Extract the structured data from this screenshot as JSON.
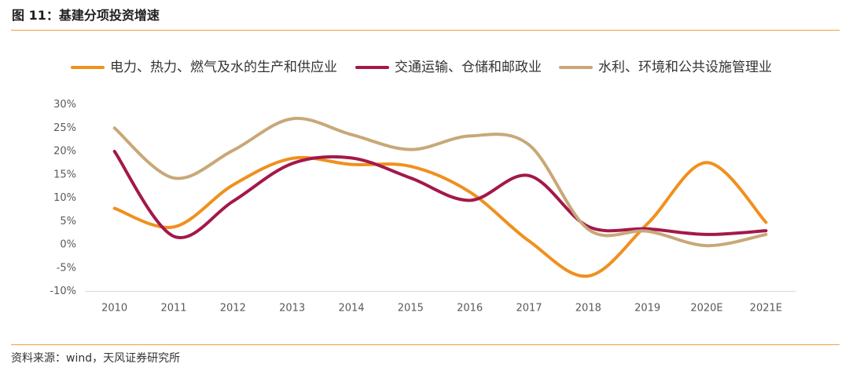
{
  "source": "资料来源：wind，天风证券研究所",
  "colors": {
    "rule": "#F2A03D",
    "text": "#333333",
    "axis_text": "#595959",
    "axis_line": "#D9D9D9"
  },
  "chart_data": {
    "type": "line",
    "smooth": true,
    "markers": false,
    "title": "图 11：基建分项投资增速",
    "categories": [
      "2010",
      "2011",
      "2012",
      "2013",
      "2014",
      "2015",
      "2016",
      "2017",
      "2018",
      "2019",
      "2020E",
      "2021E"
    ],
    "series": [
      {
        "name": "电力、热力、燃气及水的生产和供应业",
        "color": "#F0901E",
        "values": [
          7.8,
          3.8,
          12.8,
          18.5,
          17.2,
          16.8,
          11.3,
          0.8,
          -6.7,
          4.5,
          17.6,
          4.8
        ]
      },
      {
        "name": "交通运输、仓储和邮政业",
        "color": "#A3184A",
        "values": [
          20.0,
          1.8,
          9.3,
          17.4,
          18.6,
          14.3,
          9.5,
          14.8,
          3.9,
          3.4,
          2.2,
          3.0
        ]
      },
      {
        "name": "水利、环境和公共设施管理业",
        "color": "#C8A878",
        "values": [
          25.0,
          14.3,
          20.2,
          27.0,
          23.6,
          20.4,
          23.3,
          21.4,
          3.3,
          2.9,
          -0.2,
          2.2
        ]
      }
    ],
    "ylim": [
      -10,
      30
    ],
    "yticks": [
      30,
      25,
      20,
      15,
      10,
      5,
      0,
      -5,
      -10
    ],
    "ytick_labels": [
      "30%",
      "25%",
      "20%",
      "15%",
      "10%",
      "5%",
      "0%",
      "-5%",
      "-10%"
    ],
    "grid": false,
    "legend_position": "top"
  }
}
